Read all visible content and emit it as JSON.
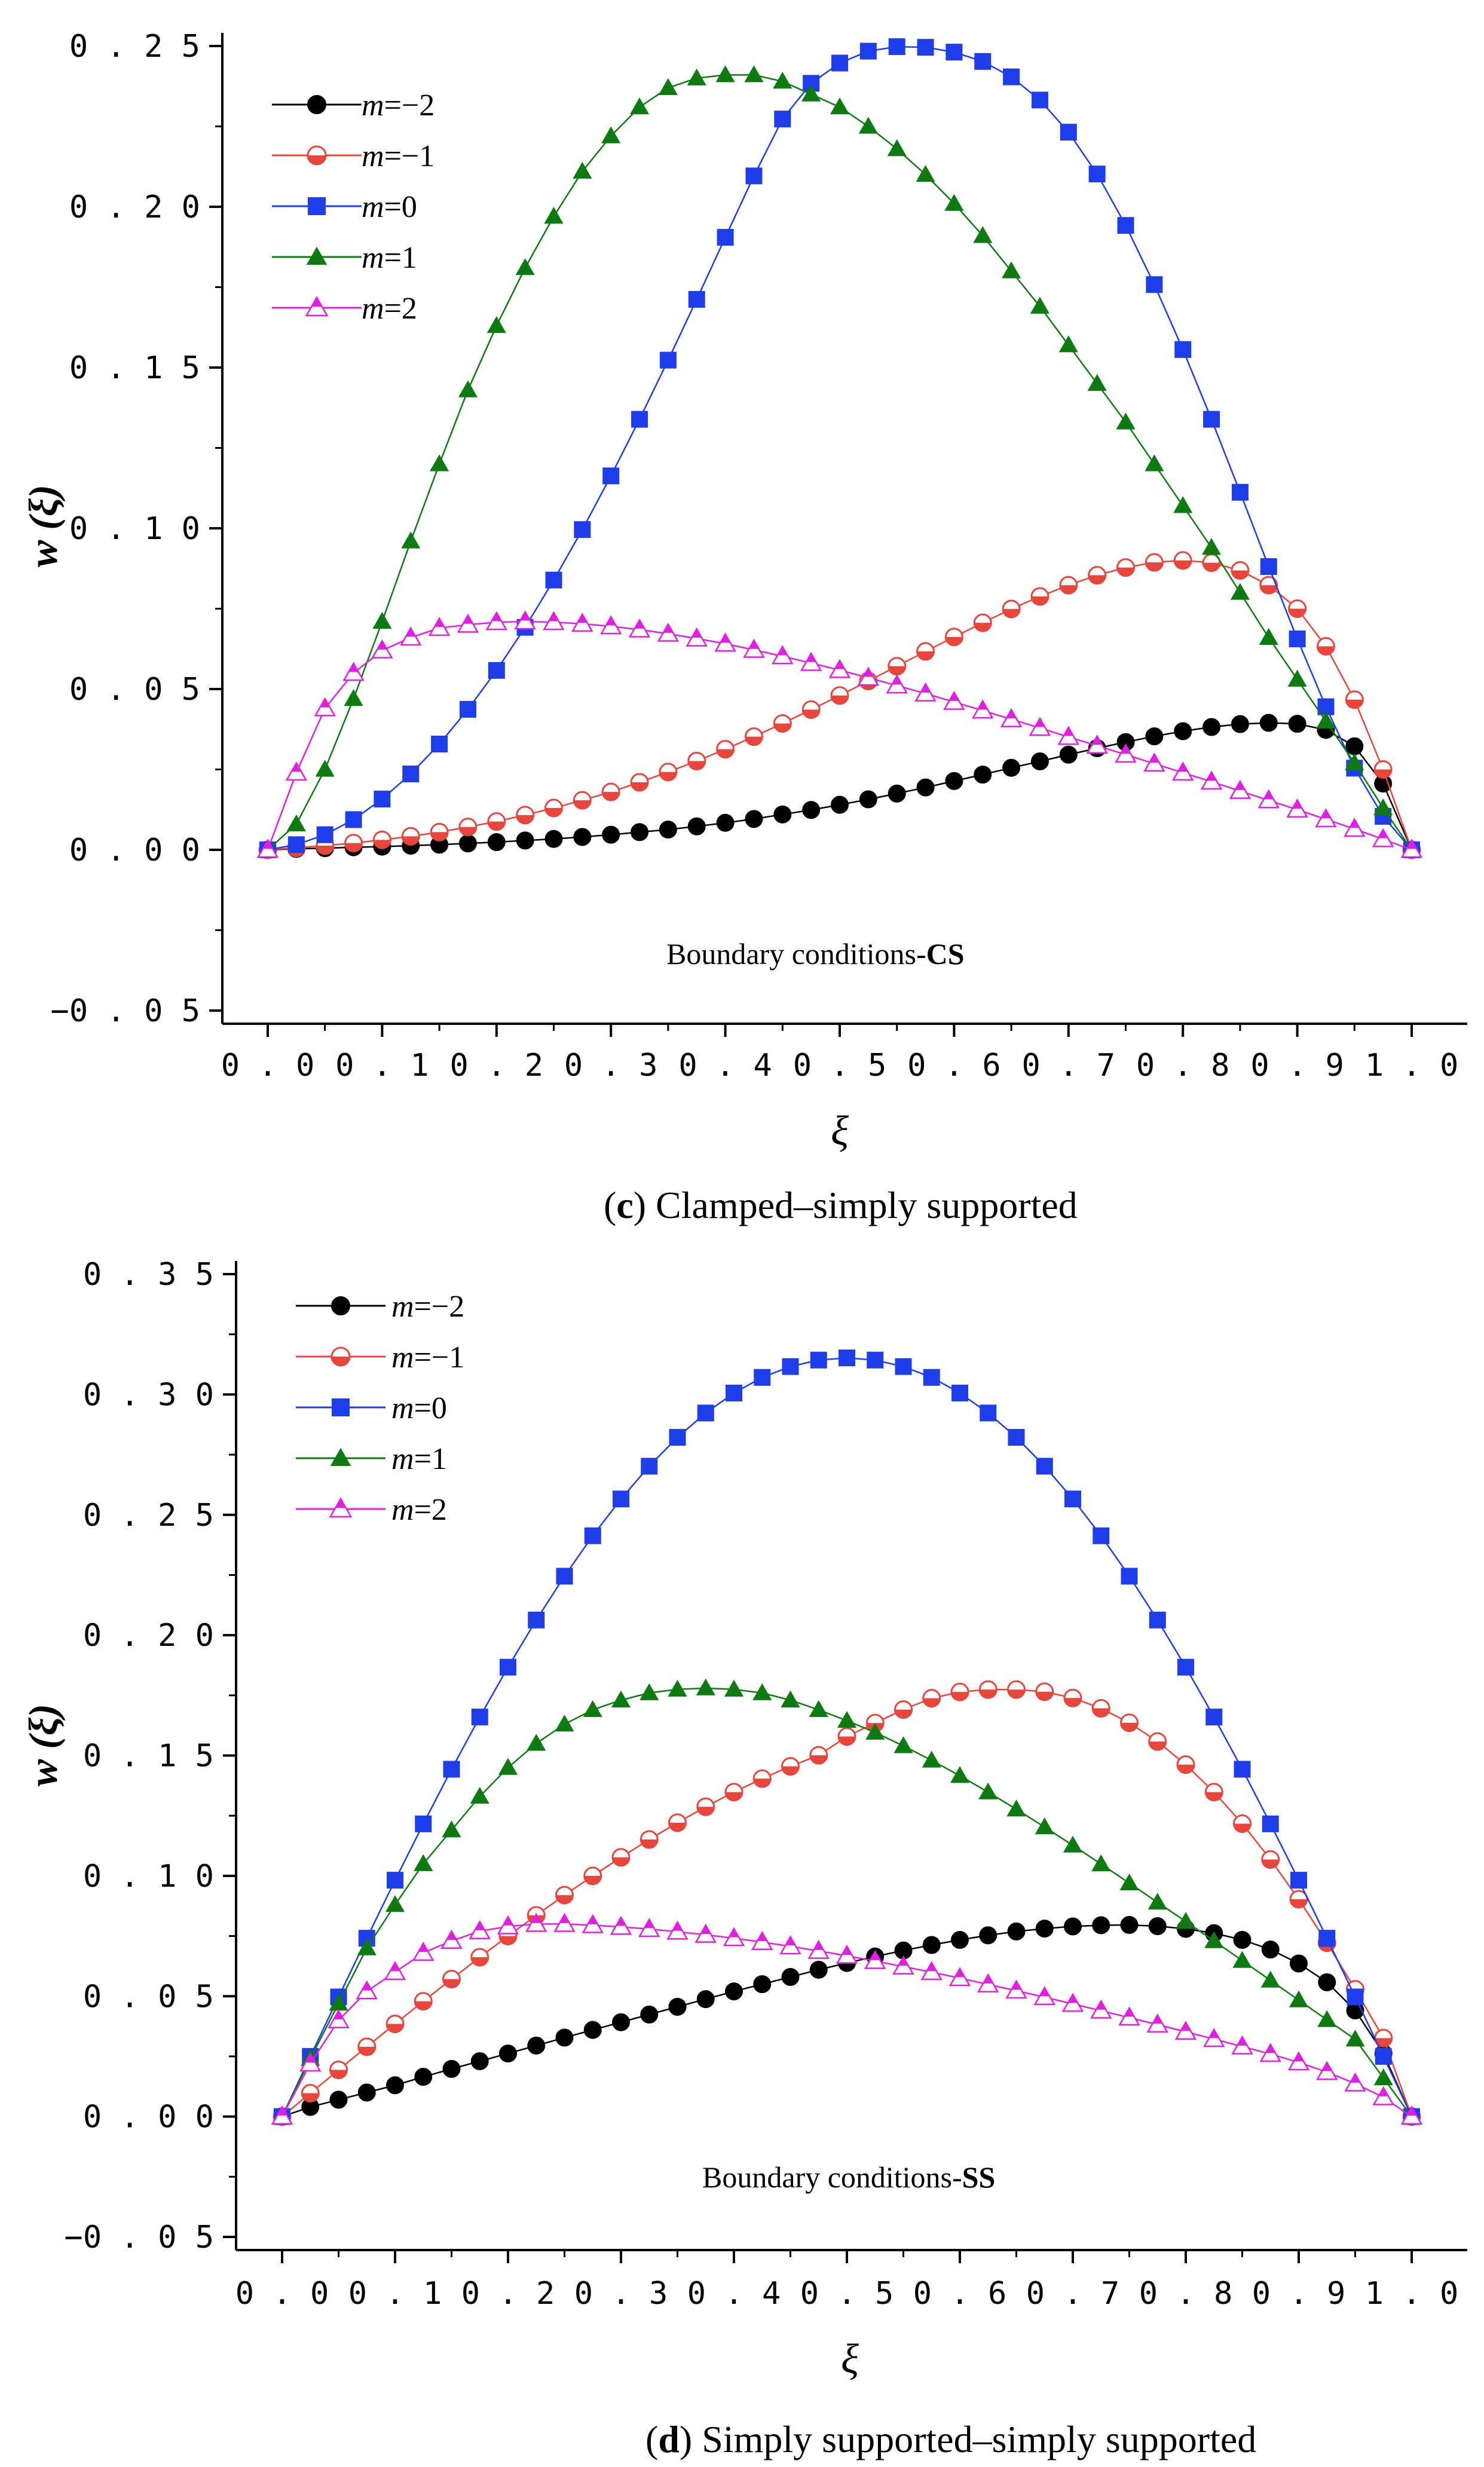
{
  "captions": [
    {
      "letter": "c",
      "text": " Clamped–simply supported"
    },
    {
      "letter": "d",
      "text": " Simply supported–simply supported"
    }
  ],
  "colors": {
    "m_neg2": "#000000",
    "m_neg1": "#e8453c",
    "m_0": "#1f3de8",
    "m_1": "#0e7a12",
    "m_2": "#e020e0"
  },
  "chart_data": [
    {
      "type": "line",
      "panel": "c",
      "caption": "(c) Clamped–simply supported",
      "title": "",
      "xlabel": "ξ",
      "ylabel": "w (ξ)",
      "xlim": [
        0.0,
        1.0
      ],
      "ylim": [
        -0.05,
        0.25
      ],
      "xticks": [
        "0.0",
        "0.1",
        "0.2",
        "0.3",
        "0.4",
        "0.5",
        "0.6",
        "0.7",
        "0.8",
        "0.9",
        "1.0"
      ],
      "yticks": [
        "0.25",
        "0.20",
        "0.15",
        "0.10",
        "0.05",
        "0.00",
        "-0.05"
      ],
      "annotation_prefix": "Boundary conditions-",
      "annotation_bold": "CS",
      "legend_position": "top-left",
      "x": [
        0,
        0.025,
        0.05,
        0.075,
        0.1,
        0.125,
        0.15,
        0.175,
        0.2,
        0.225,
        0.25,
        0.275,
        0.3,
        0.325,
        0.35,
        0.375,
        0.4,
        0.425,
        0.45,
        0.475,
        0.5,
        0.525,
        0.55,
        0.575,
        0.6,
        0.625,
        0.65,
        0.675,
        0.7,
        0.725,
        0.75,
        0.775,
        0.8,
        0.825,
        0.85,
        0.875,
        0.9,
        0.925,
        0.95,
        0.975,
        1.0
      ],
      "series": [
        {
          "name": "m=−2",
          "key": "m_neg2",
          "m": "−2",
          "marker": "circle",
          "values": [
            0,
            0.0003,
            0.0005,
            0.0008,
            0.001,
            0.0013,
            0.0016,
            0.002,
            0.0024,
            0.0029,
            0.0034,
            0.004,
            0.0047,
            0.0055,
            0.0063,
            0.0073,
            0.0084,
            0.0096,
            0.011,
            0.0124,
            0.014,
            0.0157,
            0.0175,
            0.0194,
            0.0214,
            0.0234,
            0.0255,
            0.0275,
            0.0296,
            0.0316,
            0.0335,
            0.0353,
            0.0369,
            0.0382,
            0.0391,
            0.0395,
            0.0392,
            0.0373,
            0.0322,
            0.0206,
            0
          ]
        },
        {
          "name": "m=−1",
          "key": "m_neg1",
          "m": "−1",
          "marker": "half-circle",
          "values": [
            0,
            0.0006,
            0.0013,
            0.0021,
            0.0031,
            0.0042,
            0.0055,
            0.0071,
            0.0088,
            0.0108,
            0.013,
            0.0154,
            0.018,
            0.021,
            0.0242,
            0.0276,
            0.0313,
            0.0352,
            0.0393,
            0.0436,
            0.048,
            0.0525,
            0.0571,
            0.0617,
            0.0662,
            0.0706,
            0.0749,
            0.0788,
            0.0823,
            0.0854,
            0.0878,
            0.0894,
            0.09,
            0.0893,
            0.0869,
            0.0823,
            0.075,
            0.0633,
            0.0467,
            0.025,
            0
          ]
        },
        {
          "name": "m=0",
          "key": "m_0",
          "m": "0",
          "marker": "square",
          "values": [
            0,
            0.0016,
            0.0047,
            0.0094,
            0.0158,
            0.0236,
            0.0329,
            0.0437,
            0.0558,
            0.0692,
            0.0839,
            0.0996,
            0.1163,
            0.1339,
            0.1523,
            0.1712,
            0.1905,
            0.2096,
            0.2273,
            0.2384,
            0.2447,
            0.2484,
            0.2498,
            0.2496,
            0.2481,
            0.2452,
            0.2404,
            0.2332,
            0.2232,
            0.2102,
            0.1942,
            0.1758,
            0.1556,
            0.1339,
            0.1112,
            0.0881,
            0.0656,
            0.0445,
            0.0254,
            0.0104,
            0
          ]
        },
        {
          "name": "m=1",
          "key": "m_1",
          "m": "1",
          "marker": "triangle",
          "values": [
            0,
            0.008,
            0.025,
            0.047,
            0.071,
            0.096,
            0.12,
            0.143,
            0.163,
            0.181,
            0.197,
            0.211,
            0.222,
            0.231,
            0.237,
            0.24,
            0.241,
            0.241,
            0.239,
            0.235,
            0.231,
            0.225,
            0.218,
            0.21,
            0.201,
            0.191,
            0.18,
            0.169,
            0.157,
            0.145,
            0.133,
            0.12,
            0.107,
            0.094,
            0.08,
            0.066,
            0.053,
            0.04,
            0.027,
            0.013,
            0
          ]
        },
        {
          "name": "m=2",
          "key": "m_2",
          "m": "2",
          "marker": "triangle-open",
          "values": [
            0,
            0.024,
            0.044,
            0.055,
            0.062,
            0.066,
            0.069,
            0.07,
            0.0708,
            0.071,
            0.0708,
            0.0703,
            0.0695,
            0.0685,
            0.0672,
            0.0657,
            0.0641,
            0.0622,
            0.0602,
            0.0581,
            0.0559,
            0.0535,
            0.0511,
            0.0486,
            0.046,
            0.0433,
            0.0406,
            0.0379,
            0.0351,
            0.0324,
            0.0296,
            0.0268,
            0.024,
            0.0212,
            0.0183,
            0.0154,
            0.0125,
            0.0095,
            0.0065,
            0.0033,
            0
          ]
        }
      ]
    },
    {
      "type": "line",
      "panel": "d",
      "caption": "(d) Simply supported–simply supported",
      "title": "",
      "xlabel": "ξ",
      "ylabel": "w (ξ)",
      "xlim": [
        0.0,
        1.0
      ],
      "ylim": [
        -0.05,
        0.35
      ],
      "xticks": [
        "0.0",
        "0.1",
        "0.2",
        "0.3",
        "0.4",
        "0.5",
        "0.6",
        "0.7",
        "0.8",
        "0.9",
        "1.0"
      ],
      "yticks": [
        "0.35",
        "0.30",
        "0.25",
        "0.20",
        "0.15",
        "0.10",
        "0.05",
        "0.00",
        "-0.05"
      ],
      "annotation_prefix": "Boundary conditions-",
      "annotation_bold": "SS",
      "legend_position": "top-left",
      "x": [
        0,
        0.025,
        0.05,
        0.075,
        0.1,
        0.125,
        0.15,
        0.175,
        0.2,
        0.225,
        0.25,
        0.275,
        0.3,
        0.325,
        0.35,
        0.375,
        0.4,
        0.425,
        0.45,
        0.475,
        0.5,
        0.525,
        0.55,
        0.575,
        0.6,
        0.625,
        0.65,
        0.675,
        0.7,
        0.725,
        0.75,
        0.775,
        0.8,
        0.825,
        0.85,
        0.875,
        0.9,
        0.925,
        0.95,
        0.975,
        1.0
      ],
      "series": [
        {
          "name": "m=−2",
          "key": "m_neg2",
          "m": "−2",
          "marker": "circle",
          "values": [
            0,
            0.004,
            0.007,
            0.01,
            0.013,
            0.0165,
            0.0198,
            0.023,
            0.0262,
            0.0295,
            0.0328,
            0.036,
            0.0392,
            0.0424,
            0.0456,
            0.0488,
            0.052,
            0.055,
            0.058,
            0.061,
            0.0638,
            0.0665,
            0.069,
            0.0713,
            0.0734,
            0.0753,
            0.0769,
            0.0781,
            0.079,
            0.0795,
            0.0796,
            0.0791,
            0.078,
            0.0762,
            0.0734,
            0.0694,
            0.0636,
            0.0558,
            0.0441,
            0.0262,
            0
          ]
        },
        {
          "name": "m=−1",
          "key": "m_neg1",
          "m": "−1",
          "marker": "half-circle",
          "values": [
            0,
            0.0097,
            0.0194,
            0.029,
            0.0385,
            0.0479,
            0.0571,
            0.0662,
            0.075,
            0.0836,
            0.092,
            0.1,
            0.1077,
            0.1151,
            0.1221,
            0.1287,
            0.1348,
            0.1404,
            0.1455,
            0.1501,
            0.1579,
            0.1635,
            0.1691,
            0.1738,
            0.1764,
            0.1774,
            0.1774,
            0.1765,
            0.1739,
            0.1696,
            0.1636,
            0.1558,
            0.1462,
            0.1348,
            0.1217,
            0.1068,
            0.0903,
            0.0722,
            0.0529,
            0.0326,
            0
          ]
        },
        {
          "name": "m=0",
          "key": "m_0",
          "m": "0",
          "marker": "square",
          "values": [
            0,
            0.025,
            0.0497,
            0.0741,
            0.0982,
            0.1216,
            0.1443,
            0.166,
            0.1867,
            0.2063,
            0.2245,
            0.2413,
            0.2566,
            0.2702,
            0.2822,
            0.2923,
            0.3006,
            0.3071,
            0.3116,
            0.3143,
            0.3152,
            0.3143,
            0.3116,
            0.3071,
            0.3006,
            0.2923,
            0.2822,
            0.2702,
            0.2566,
            0.2413,
            0.2245,
            0.2063,
            0.1867,
            0.166,
            0.1443,
            0.1216,
            0.0982,
            0.0741,
            0.0497,
            0.025,
            0
          ]
        },
        {
          "name": "m=1",
          "key": "m_1",
          "m": "1",
          "marker": "triangle",
          "values": [
            0,
            0.024,
            0.047,
            0.07,
            0.088,
            0.105,
            0.119,
            0.133,
            0.145,
            0.155,
            0.163,
            0.169,
            0.173,
            0.176,
            0.1775,
            0.178,
            0.1775,
            0.176,
            0.173,
            0.169,
            0.1645,
            0.1596,
            0.154,
            0.148,
            0.1416,
            0.1348,
            0.1277,
            0.1203,
            0.1127,
            0.1049,
            0.097,
            0.089,
            0.081,
            0.073,
            0.0648,
            0.0566,
            0.0484,
            0.0402,
            0.0321,
            0.016,
            0
          ]
        },
        {
          "name": "m=2",
          "key": "m_2",
          "m": "2",
          "marker": "triangle-open",
          "values": [
            0,
            0.022,
            0.04,
            0.052,
            0.06,
            0.068,
            0.073,
            0.077,
            0.079,
            0.08,
            0.08,
            0.0795,
            0.0788,
            0.0779,
            0.0768,
            0.0755,
            0.0741,
            0.0725,
            0.0707,
            0.0688,
            0.0668,
            0.0646,
            0.0623,
            0.06,
            0.0575,
            0.0549,
            0.0523,
            0.0496,
            0.0468,
            0.044,
            0.0411,
            0.0382,
            0.0352,
            0.0322,
            0.0291,
            0.026,
            0.0225,
            0.0185,
            0.0137,
            0.008,
            0
          ]
        }
      ]
    }
  ]
}
